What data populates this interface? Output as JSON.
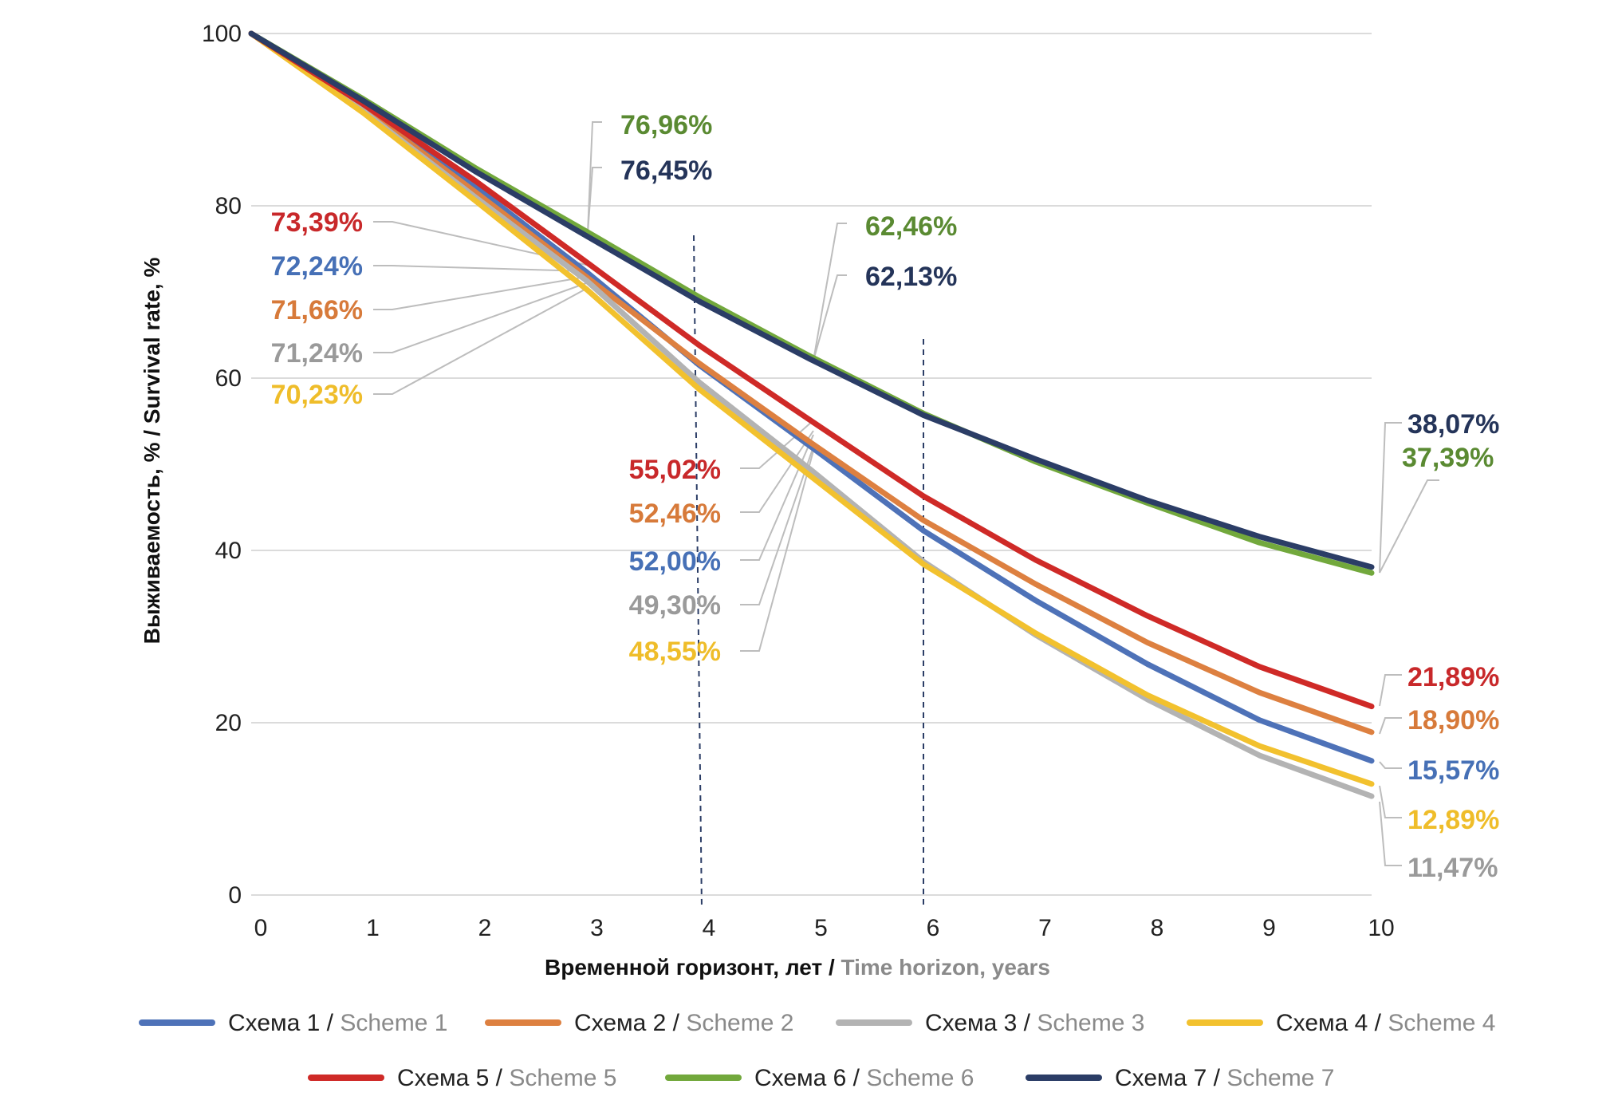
{
  "chart_data": {
    "type": "line",
    "xlabel_ru": "Временной горизонт, лет / ",
    "xlabel_en": "Time horizon, years",
    "ylabel": "Выживаемость, % / Survival rate, %",
    "x": [
      0,
      1,
      2,
      3,
      4,
      5,
      6,
      7,
      8,
      9,
      10
    ],
    "xlim": [
      0,
      10
    ],
    "ylim": [
      0,
      100
    ],
    "y_ticks": [
      0,
      20,
      40,
      60,
      80,
      100
    ],
    "grid": "horizontal",
    "reference_lines_x": [
      4,
      6
    ],
    "legend_position": "bottom",
    "series": [
      {
        "name_ru": "Схема 1 / ",
        "name_en": "Scheme 1",
        "color": "#4e72b8",
        "values": [
          100,
          91.6,
          82.2,
          72.24,
          61.5,
          52.0,
          42.3,
          34.2,
          26.8,
          20.3,
          15.57
        ]
      },
      {
        "name_ru": "Схема 2 / ",
        "name_en": "Scheme 2",
        "color": "#dd8040",
        "values": [
          100,
          91.3,
          81.6,
          71.66,
          61.7,
          52.46,
          43.5,
          36.1,
          29.3,
          23.5,
          18.9
        ]
      },
      {
        "name_ru": "Схема 3 / ",
        "name_en": "Scheme 3",
        "color": "#b3b3b3",
        "values": [
          100,
          91.0,
          81.0,
          71.24,
          59.5,
          49.3,
          38.7,
          30.2,
          22.7,
          16.2,
          11.47
        ]
      },
      {
        "name_ru": "Схема 4 / ",
        "name_en": "Scheme 4",
        "color": "#f2c12e",
        "values": [
          100,
          90.8,
          80.6,
          70.23,
          58.7,
          48.55,
          38.4,
          30.4,
          23.2,
          17.3,
          12.89
        ]
      },
      {
        "name_ru": "Схема 5 / ",
        "name_en": "Scheme 5",
        "color": "#cf2a27",
        "values": [
          100,
          91.8,
          82.9,
          73.39,
          63.8,
          55.02,
          46.3,
          38.9,
          32.4,
          26.5,
          21.89
        ]
      },
      {
        "name_ru": "Схема 6 / ",
        "name_en": "Scheme 6",
        "color": "#72a83c",
        "values": [
          100,
          92.4,
          84.4,
          76.96,
          69.4,
          62.46,
          55.9,
          50.3,
          45.5,
          40.9,
          37.39
        ]
      },
      {
        "name_ru": "Схема 7 / ",
        "name_en": "Scheme 7",
        "color": "#2b3d66",
        "values": [
          100,
          92.2,
          84.0,
          76.45,
          68.9,
          62.13,
          55.7,
          50.6,
          45.8,
          41.6,
          38.07
        ]
      }
    ],
    "annotations": [
      {
        "text": "76,96%",
        "color": "#5a8a32"
      },
      {
        "text": "76,45%",
        "color": "#243459"
      },
      {
        "text": "73,39%",
        "color": "#c8282a"
      },
      {
        "text": "72,24%",
        "color": "#4670b6"
      },
      {
        "text": "71,66%",
        "color": "#d77a3a"
      },
      {
        "text": "71,24%",
        "color": "#9a9a9a"
      },
      {
        "text": "70,23%",
        "color": "#efbd2a"
      },
      {
        "text": "62,46%",
        "color": "#5a8a32"
      },
      {
        "text": "62,13%",
        "color": "#243459"
      },
      {
        "text": "55,02%",
        "color": "#c8282a"
      },
      {
        "text": "52,46%",
        "color": "#d77a3a"
      },
      {
        "text": "52,00%",
        "color": "#4670b6"
      },
      {
        "text": "49,30%",
        "color": "#9a9a9a"
      },
      {
        "text": "48,55%",
        "color": "#efbd2a"
      },
      {
        "text": "38,07%",
        "color": "#243459"
      },
      {
        "text": "37,39%",
        "color": "#5a8a32"
      },
      {
        "text": "21,89%",
        "color": "#c8282a"
      },
      {
        "text": "18,90%",
        "color": "#d77a3a"
      },
      {
        "text": "15,57%",
        "color": "#4670b6"
      },
      {
        "text": "12,89%",
        "color": "#efbd2a"
      },
      {
        "text": "11,47%",
        "color": "#9a9a9a"
      }
    ]
  }
}
